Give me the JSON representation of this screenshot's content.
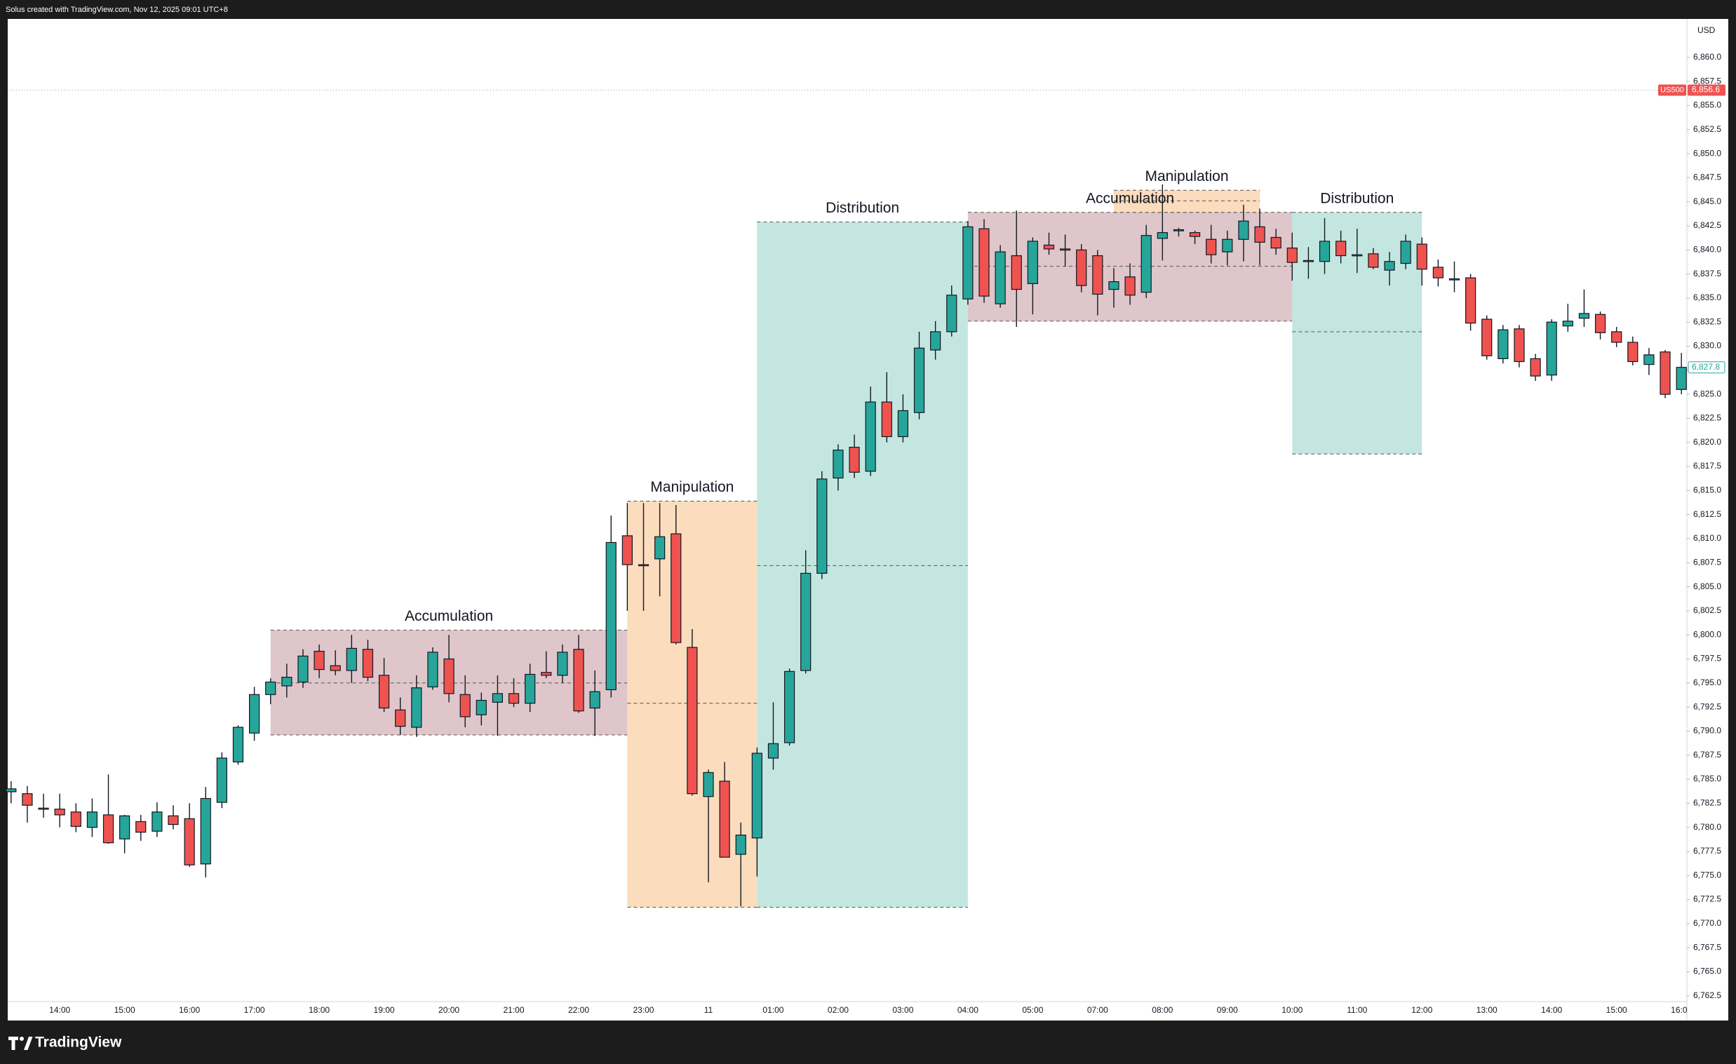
{
  "header": "Solus created with TradingView.com, Nov 12, 2025 09:01 UTC+8",
  "brand": "TradingView",
  "chart_data": {
    "type": "candlestick",
    "currency": "USD",
    "up_color": "#26a69a",
    "down_color": "#ef5350",
    "symbol": "US500",
    "symbol_price": {
      "value": 6856.6,
      "label": "6,856.6"
    },
    "last_price": {
      "value": 6827.8,
      "label": "6,827.8"
    },
    "categories": [
      null,
      null,
      null,
      "14:00",
      null,
      null,
      null,
      "15:00",
      null,
      null,
      null,
      "16:00",
      null,
      null,
      null,
      "17:00",
      null,
      null,
      null,
      "18:00",
      null,
      null,
      null,
      "19:00",
      null,
      null,
      null,
      "20:00",
      null,
      null,
      null,
      "21:00",
      null,
      null,
      null,
      "22:00",
      null,
      null,
      null,
      "23:00",
      null,
      null,
      null,
      "11",
      null,
      null,
      null,
      "01:00",
      null,
      null,
      null,
      "02:00",
      null,
      null,
      null,
      "03:00",
      null,
      null,
      null,
      "04:00",
      null,
      null,
      null,
      "05:00",
      null,
      null,
      null,
      "07:00",
      null,
      null,
      null,
      "08:00",
      null,
      null,
      null,
      "09:00",
      null,
      null,
      null,
      "10:00",
      null,
      null,
      null,
      "11:00",
      null,
      null,
      null,
      "12:00",
      null,
      null,
      null,
      "13:00",
      null,
      null,
      null,
      "14:00",
      null,
      null,
      null,
      "15:00",
      null,
      null,
      null,
      "16:00"
    ],
    "open": [
      6783.7,
      6783.5,
      6782.0,
      6781.9,
      6781.6,
      6780.0,
      6781.3,
      6778.8,
      6780.6,
      6779.6,
      6781.2,
      6780.9,
      6776.2,
      6782.6,
      6786.8,
      6789.8,
      6793.8,
      6794.7,
      6795.1,
      6798.3,
      6796.8,
      6796.3,
      6798.5,
      6795.8,
      6792.2,
      6790.4,
      6794.6,
      6797.5,
      6793.8,
      6791.7,
      6793.0,
      6793.9,
      6792.9,
      6796.1,
      6795.8,
      6798.5,
      6792.4,
      6794.3,
      6810.3,
      6807.3,
      6807.9,
      6810.5,
      6798.7,
      6783.2,
      6784.8,
      6777.2,
      6778.9,
      6787.2,
      6788.8,
      6796.3,
      6806.4,
      6816.3,
      6819.5,
      6817.0,
      6824.2,
      6820.6,
      6823.1,
      6829.6,
      6831.5,
      6834.9,
      6842.2,
      6834.4,
      6839.4,
      6836.5,
      6840.5,
      6840.1,
      6840.0,
      6839.4,
      6835.9,
      6837.2,
      6835.6,
      6841.2,
      6842.0,
      6841.8,
      6841.1,
      6839.8,
      6841.1,
      6842.4,
      6841.3,
      6840.2,
      6838.9,
      6838.8,
      6840.9,
      6839.5,
      6839.6,
      6837.9,
      6838.6,
      6840.6,
      6838.2,
      6837.0,
      6837.1,
      6832.8,
      6828.7,
      6831.8,
      6828.7,
      6827.0,
      6832.1,
      6832.9,
      6833.3,
      6831.5,
      6830.4,
      6828.1,
      6829.4,
      6825.5
    ],
    "high": [
      6784.8,
      6784.3,
      6783.5,
      6783.5,
      6782.5,
      6783.0,
      6785.5,
      6781.3,
      6781.3,
      6782.6,
      6782.3,
      6782.5,
      6784.2,
      6787.8,
      6790.6,
      6794.6,
      6795.5,
      6797.0,
      6798.5,
      6799.0,
      6798.4,
      6800.0,
      6799.5,
      6797.6,
      6793.5,
      6795.8,
      6798.7,
      6800.0,
      6795.8,
      6794.0,
      6795.8,
      6795.5,
      6797.0,
      6798.3,
      6799.0,
      6800.0,
      6796.3,
      6812.4,
      6813.7,
      6813.7,
      6813.7,
      6813.5,
      6800.6,
      6786.0,
      6786.8,
      6780.5,
      6788.3,
      6793.0,
      6796.5,
      6808.8,
      6817.0,
      6819.8,
      6820.8,
      6825.8,
      6827.3,
      6825.0,
      6831.5,
      6832.6,
      6836.3,
      6843.0,
      6843.2,
      6840.5,
      6844.1,
      6841.3,
      6841.8,
      6841.6,
      6840.6,
      6840.0,
      6838.1,
      6838.6,
      6842.6,
      6846.8,
      6842.3,
      6842.0,
      6842.6,
      6842.0,
      6844.7,
      6844.3,
      6842.2,
      6841.8,
      6840.3,
      6843.3,
      6842.0,
      6842.2,
      6840.2,
      6839.8,
      6841.6,
      6841.3,
      6839.0,
      6838.8,
      6837.5,
      6833.2,
      6832.2,
      6832.2,
      6829.2,
      6832.8,
      6834.4,
      6835.9,
      6833.6,
      6832.0,
      6831.0,
      6829.8,
      6829.6,
      6829.3
    ],
    "low": [
      6782.5,
      6780.5,
      6781.0,
      6780.0,
      6779.5,
      6779.0,
      6778.3,
      6777.3,
      6778.6,
      6779.0,
      6779.8,
      6775.9,
      6774.8,
      6782.0,
      6786.5,
      6789.0,
      6792.8,
      6793.5,
      6794.5,
      6795.5,
      6795.8,
      6795.0,
      6795.2,
      6792.0,
      6789.6,
      6789.4,
      6794.3,
      6793.0,
      6790.4,
      6790.6,
      6789.5,
      6792.5,
      6792.0,
      6795.5,
      6795.0,
      6791.9,
      6789.5,
      6793.5,
      6802.5,
      6802.5,
      6804.0,
      6799.0,
      6783.3,
      6774.3,
      6776.9,
      6771.8,
      6774.9,
      6786.0,
      6788.5,
      6796.0,
      6805.8,
      6815.0,
      6816.3,
      6816.5,
      6820.0,
      6820.0,
      6822.4,
      6828.6,
      6831.0,
      6834.3,
      6834.5,
      6834.0,
      6832.0,
      6833.3,
      6839.5,
      6838.3,
      6835.6,
      6833.2,
      6834.0,
      6834.3,
      6835.0,
      6838.9,
      6841.4,
      6840.6,
      6838.6,
      6838.4,
      6838.8,
      6838.4,
      6839.5,
      6836.8,
      6837.0,
      6837.5,
      6838.6,
      6837.6,
      6838.0,
      6836.3,
      6838.0,
      6836.3,
      6836.2,
      6835.6,
      6831.6,
      6828.6,
      6828.2,
      6827.8,
      6826.4,
      6826.4,
      6831.5,
      6832.0,
      6830.7,
      6829.9,
      6828.0,
      6827.0,
      6824.6,
      6825.0
    ],
    "close": [
      6784.0,
      6782.3,
      6781.9,
      6781.3,
      6780.1,
      6781.6,
      6778.4,
      6781.2,
      6779.5,
      6781.6,
      6780.3,
      6776.1,
      6783.0,
      6787.2,
      6790.4,
      6793.8,
      6795.1,
      6795.6,
      6797.8,
      6796.4,
      6796.3,
      6798.6,
      6795.6,
      6792.4,
      6790.5,
      6794.5,
      6798.2,
      6793.9,
      6791.5,
      6793.2,
      6793.9,
      6792.9,
      6795.9,
      6795.8,
      6798.2,
      6792.1,
      6794.1,
      6809.6,
      6807.3,
      6807.2,
      6810.2,
      6799.2,
      6783.5,
      6785.7,
      6776.9,
      6779.2,
      6787.7,
      6788.7,
      6796.2,
      6806.4,
      6816.2,
      6819.2,
      6816.9,
      6824.2,
      6820.6,
      6823.3,
      6829.8,
      6831.5,
      6835.3,
      6842.4,
      6835.2,
      6839.8,
      6835.9,
      6840.9,
      6840.1,
      6840.0,
      6836.3,
      6835.4,
      6836.7,
      6835.3,
      6841.5,
      6841.8,
      6842.1,
      6841.4,
      6839.5,
      6841.1,
      6843.0,
      6840.8,
      6840.2,
      6838.7,
      6838.8,
      6840.9,
      6839.4,
      6839.5,
      6838.2,
      6838.8,
      6840.9,
      6838.0,
      6837.1,
      6836.9,
      6832.4,
      6829.0,
      6831.7,
      6828.4,
      6826.9,
      6832.5,
      6832.6,
      6833.4,
      6831.4,
      6830.4,
      6828.4,
      6829.1,
      6825.0,
      6827.8
    ],
    "ylim": [
      6761.9,
      6864.0
    ],
    "yticks": [
      {
        "value": 6762.5,
        "label": "6,762.5"
      },
      {
        "value": 6765.0,
        "label": "6,765.0"
      },
      {
        "value": 6767.5,
        "label": "6,767.5"
      },
      {
        "value": 6770.0,
        "label": "6,770.0"
      },
      {
        "value": 6772.5,
        "label": "6,772.5"
      },
      {
        "value": 6775.0,
        "label": "6,775.0"
      },
      {
        "value": 6777.5,
        "label": "6,777.5"
      },
      {
        "value": 6780.0,
        "label": "6,780.0"
      },
      {
        "value": 6782.5,
        "label": "6,782.5"
      },
      {
        "value": 6785.0,
        "label": "6,785.0"
      },
      {
        "value": 6787.5,
        "label": "6,787.5"
      },
      {
        "value": 6790.0,
        "label": "6,790.0"
      },
      {
        "value": 6792.5,
        "label": "6,792.5"
      },
      {
        "value": 6795.0,
        "label": "6,795.0"
      },
      {
        "value": 6797.5,
        "label": "6,797.5"
      },
      {
        "value": 6800.0,
        "label": "6,800.0"
      },
      {
        "value": 6802.5,
        "label": "6,802.5"
      },
      {
        "value": 6805.0,
        "label": "6,805.0"
      },
      {
        "value": 6807.5,
        "label": "6,807.5"
      },
      {
        "value": 6810.0,
        "label": "6,810.0"
      },
      {
        "value": 6812.5,
        "label": "6,812.5"
      },
      {
        "value": 6815.0,
        "label": "6,815.0"
      },
      {
        "value": 6817.5,
        "label": "6,817.5"
      },
      {
        "value": 6820.0,
        "label": "6,820.0"
      },
      {
        "value": 6822.5,
        "label": "6,822.5"
      },
      {
        "value": 6825.0,
        "label": "6,825.0"
      },
      {
        "value": 6827.5,
        "label": "6,827.5"
      },
      {
        "value": 6830.0,
        "label": "6,830.0"
      },
      {
        "value": 6832.5,
        "label": "6,832.5"
      },
      {
        "value": 6835.0,
        "label": "6,835.0"
      },
      {
        "value": 6837.5,
        "label": "6,837.5"
      },
      {
        "value": 6840.0,
        "label": "6,840.0"
      },
      {
        "value": 6842.5,
        "label": "6,842.5"
      },
      {
        "value": 6845.0,
        "label": "6,845.0"
      },
      {
        "value": 6847.5,
        "label": "6,847.5"
      },
      {
        "value": 6850.0,
        "label": "6,850.0"
      },
      {
        "value": 6852.5,
        "label": "6,852.5"
      },
      {
        "value": 6855.0,
        "label": "6,855.0"
      },
      {
        "value": 6857.5,
        "label": "6,857.5"
      },
      {
        "value": 6860.0,
        "label": "6,860.0"
      }
    ],
    "zones": [
      {
        "label": "Accumulation",
        "color": "#dfc6ca",
        "x": [
          16,
          38
        ],
        "top": 6800.5,
        "bottom": 6789.6,
        "mid": 6795.0
      },
      {
        "label": "Manipulation",
        "color": "#fbdcbd",
        "x": [
          38,
          46
        ],
        "top": 6813.9,
        "bottom": 6771.7,
        "mid": 6792.9
      },
      {
        "label": "Distribution",
        "color": "#c3e7e0",
        "x": [
          46,
          59
        ],
        "top": 6842.9,
        "bottom": 6771.7,
        "mid": 6807.2
      },
      {
        "label": "Accumulation",
        "color": "#dfc6ca",
        "x": [
          59,
          79
        ],
        "top": 6843.9,
        "bottom": 6832.6,
        "mid": 6838.3
      },
      {
        "label": "Manipulation",
        "color": "#fbdcbd",
        "x": [
          68,
          77
        ],
        "top": 6846.2,
        "bottom": 6843.9,
        "mid": 6845.1
      },
      {
        "label": "Distribution",
        "color": "#c3e7e0",
        "x": [
          79,
          87
        ],
        "top": 6843.9,
        "bottom": 6818.8,
        "mid": 6831.5
      }
    ]
  }
}
